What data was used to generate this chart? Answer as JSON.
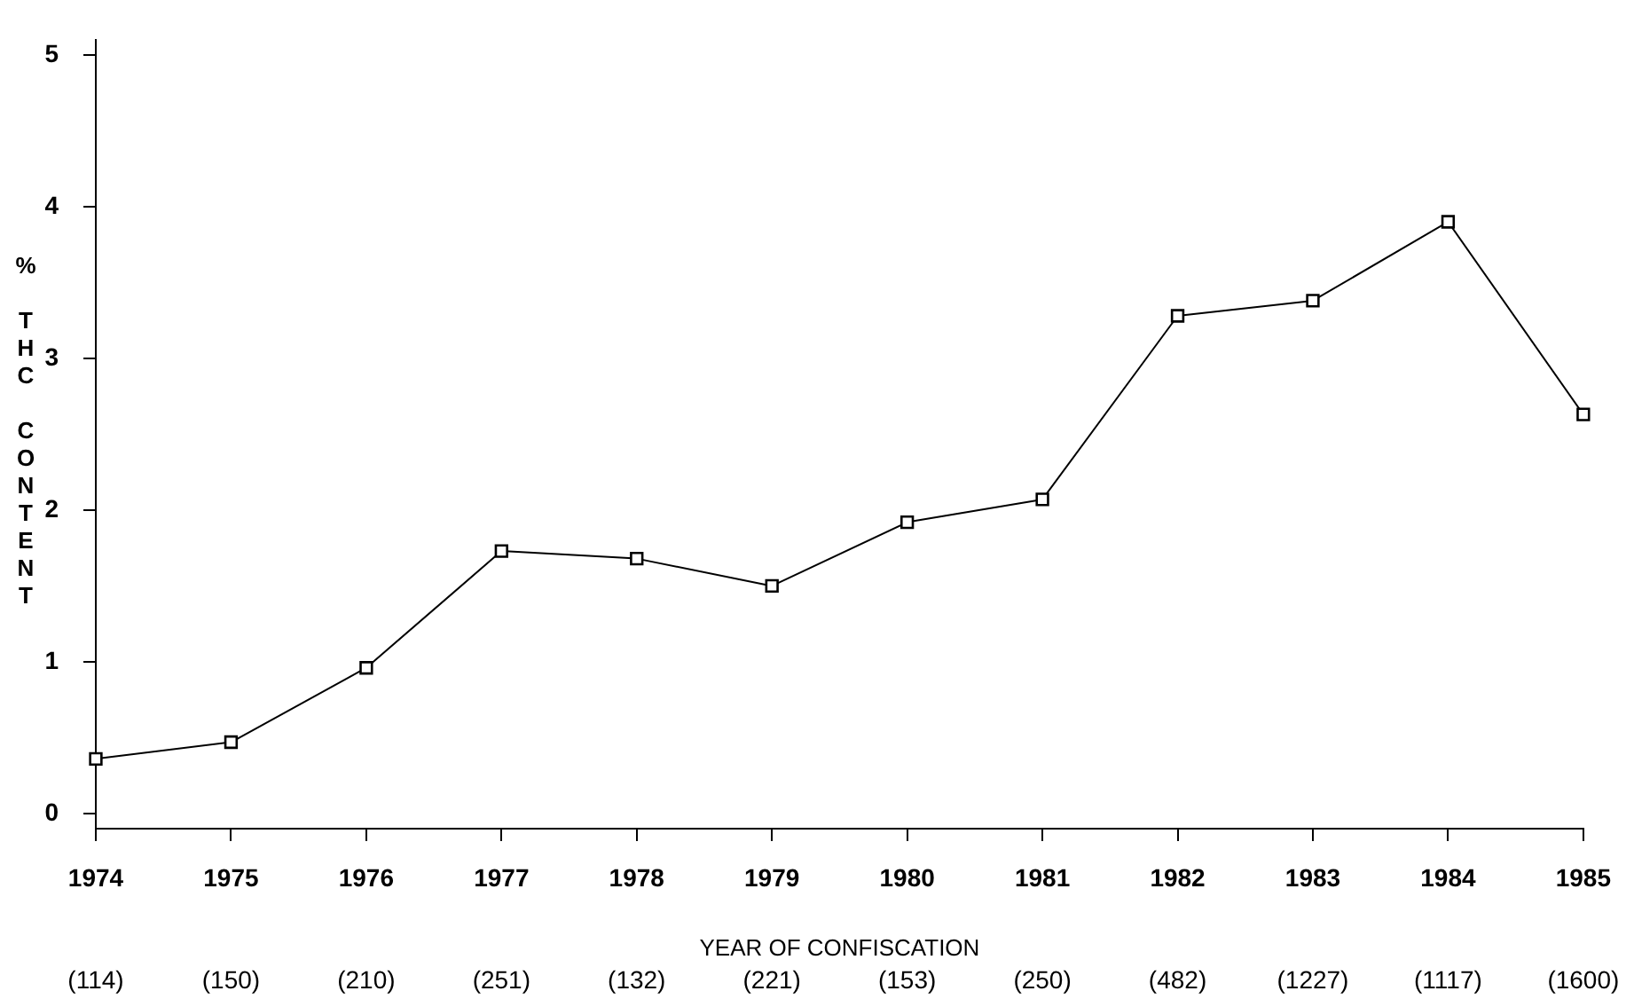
{
  "chart_data": {
    "type": "line",
    "xlabel": "YEAR OF CONFISCATION",
    "ylabel": "% THC CONTENT",
    "categories": [
      "1974",
      "1975",
      "1976",
      "1977",
      "1978",
      "1979",
      "1980",
      "1981",
      "1982",
      "1983",
      "1984",
      "1985"
    ],
    "series": [
      {
        "color": "#000000",
        "values": [
          0.36,
          0.47,
          0.96,
          1.73,
          1.68,
          1.5,
          1.92,
          2.07,
          3.28,
          3.38,
          3.9,
          2.63
        ]
      }
    ],
    "ylim": [
      -0.1,
      5.1
    ],
    "yticks": [
      0,
      1,
      2,
      3,
      4,
      5
    ],
    "grid": false,
    "legend": false,
    "marker": "square",
    "line_style": "solid",
    "annotations": [
      "(114)",
      "(150)",
      "(210)",
      "(251)",
      "(132)",
      "(221)",
      "(153)",
      "(250)",
      "(482)",
      "(1227)",
      "(1117)",
      "(1600)"
    ]
  }
}
